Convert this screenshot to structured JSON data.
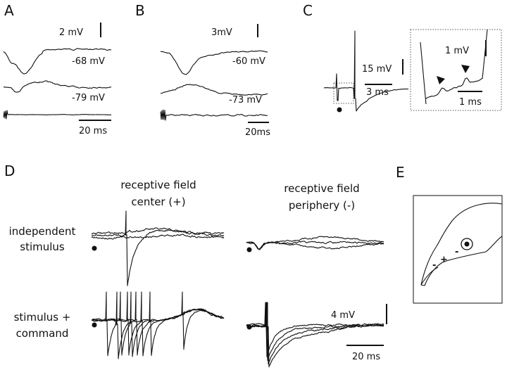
{
  "panels": {
    "A": {
      "label": "A",
      "vscale": "2 mV",
      "potentials": [
        "-68 mV",
        "-79 mV"
      ],
      "tscale": "20 ms"
    },
    "B": {
      "label": "B",
      "vscale": "3mV",
      "potentials": [
        "-60 mV",
        "-73 mV"
      ],
      "tscale": "20ms"
    },
    "C": {
      "label": "C",
      "vscale": "15 mV",
      "tscale": "3 ms",
      "inset_vscale": "1 mV",
      "inset_tscale": "1 ms"
    },
    "D": {
      "label": "D",
      "columns": [
        [
          "receptive field",
          "center (+)"
        ],
        [
          "receptive field",
          "periphery (-)"
        ]
      ],
      "rows": [
        [
          "independent",
          "stimulus"
        ],
        [
          "stimulus +",
          "command"
        ]
      ],
      "vscale": "4 mV",
      "tscale": "20 ms"
    },
    "E": {
      "label": "E",
      "signs": [
        "+",
        "-",
        "-"
      ]
    }
  }
}
